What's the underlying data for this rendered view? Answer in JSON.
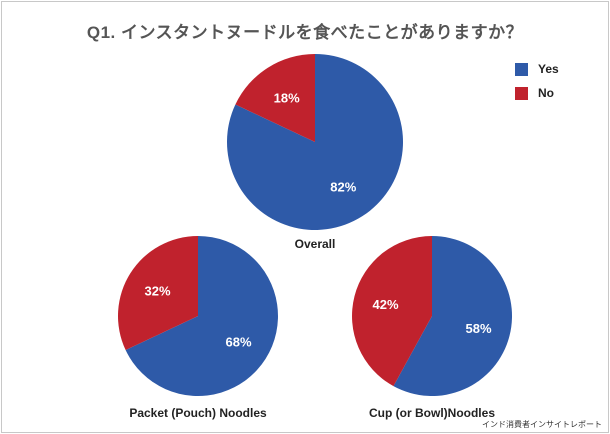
{
  "title": "Q1. インスタントヌードルを食べたことがありますか？",
  "legend": [
    {
      "label": "Yes",
      "color": "#2e5aa8"
    },
    {
      "label": "No",
      "color": "#c0222d"
    }
  ],
  "source": "インド消費者インサイトレポート",
  "chart_data": [
    {
      "type": "pie",
      "title": "Overall",
      "slices": [
        {
          "label": "Yes",
          "value": 82,
          "display": "82%",
          "color": "#2e5aa8"
        },
        {
          "label": "No",
          "value": 18,
          "display": "18%",
          "color": "#c0222d"
        }
      ]
    },
    {
      "type": "pie",
      "title": "Packet (Pouch) Noodles",
      "slices": [
        {
          "label": "Yes",
          "value": 68,
          "display": "68%",
          "color": "#2e5aa8"
        },
        {
          "label": "No",
          "value": 32,
          "display": "32%",
          "color": "#c0222d"
        }
      ]
    },
    {
      "type": "pie",
      "title": "Cup (or Bowl)Noodles",
      "slices": [
        {
          "label": "Yes",
          "value": 58,
          "display": "58%",
          "color": "#2e5aa8"
        },
        {
          "label": "No",
          "value": 42,
          "display": "42%",
          "color": "#c0222d"
        }
      ]
    }
  ]
}
